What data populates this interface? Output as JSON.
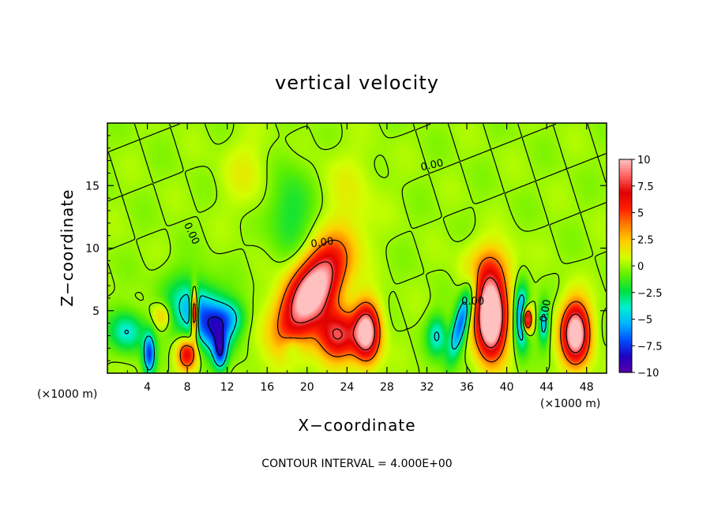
{
  "chart_data": {
    "type": "heatmap",
    "title": "vertical velocity",
    "xlabel": "X−coordinate",
    "ylabel": "Z−coordinate",
    "x_unit_left": "(×1000 m)",
    "x_unit_right": "(×1000 m)",
    "footer": "CONTOUR INTERVAL = 4.000E+00",
    "xlim": [
      0,
      50
    ],
    "ylim": [
      0,
      20
    ],
    "x_ticks": [
      "4",
      "8",
      "12",
      "16",
      "20",
      "24",
      "28",
      "32",
      "36",
      "40",
      "44",
      "48"
    ],
    "x_tick_values": [
      4,
      8,
      12,
      16,
      20,
      24,
      28,
      32,
      36,
      40,
      44,
      48
    ],
    "y_ticks": [
      "5",
      "10",
      "15"
    ],
    "y_tick_values": [
      5,
      10,
      15
    ],
    "colorbar": {
      "min": -10,
      "max": 10,
      "labels": [
        "10",
        "7.5",
        "5",
        "2.5",
        "0",
        "−2.5",
        "−5",
        "−7.5",
        "−10"
      ],
      "values": [
        10,
        7.5,
        5,
        2.5,
        0,
        -2.5,
        -5,
        -7.5,
        -10
      ],
      "colors": [
        "#5a00a8",
        "#2000c0",
        "#0050ff",
        "#00b4ff",
        "#00f0d0",
        "#00e040",
        "#60f000",
        "#d0ff00",
        "#ffd000",
        "#ff8000",
        "#ff2000",
        "#e00000",
        "#ff6060",
        "#ffc0c0"
      ]
    },
    "contour_labels": [
      {
        "text": "0.00",
        "x": 21.5,
        "z": 10.5,
        "angle": -8
      },
      {
        "text": "0.00",
        "x": 32.5,
        "z": 16.7,
        "angle": -12
      },
      {
        "text": "0.00",
        "x": 8.5,
        "z": 11.2,
        "angle": 65
      },
      {
        "text": "0.00",
        "x": 36.6,
        "z": 5.8,
        "angle": 0
      },
      {
        "text": "0.00",
        "x": 43.8,
        "z": 5.0,
        "angle": -80
      }
    ],
    "features": [
      {
        "x": 20.5,
        "z": 6.5,
        "w": 12,
        "rx": 2.6,
        "rz": 3.8,
        "tilt": 0.55
      },
      {
        "x": 23.0,
        "z": 3.0,
        "w": 8,
        "rx": 2.0,
        "rz": 2.0,
        "tilt": 0.0
      },
      {
        "x": 26.0,
        "z": 3.3,
        "w": 11,
        "rx": 1.3,
        "rz": 2.3,
        "tilt": 0.0
      },
      {
        "x": 38.4,
        "z": 4.5,
        "w": 15,
        "rx": 1.5,
        "rz": 3.1,
        "tilt": 0.0
      },
      {
        "x": 46.9,
        "z": 3.2,
        "w": 12,
        "rx": 1.4,
        "rz": 2.4,
        "tilt": 0.0
      },
      {
        "x": 8.0,
        "z": 1.5,
        "w": 7,
        "rx": 1.0,
        "rz": 1.3,
        "tilt": 0.0
      },
      {
        "x": 8.7,
        "z": 4.8,
        "w": 12,
        "rx": 0.35,
        "rz": 1.8,
        "tilt": 0.0
      },
      {
        "x": 42.0,
        "z": 4.3,
        "w": 12,
        "rx": 0.5,
        "rz": 1.0,
        "tilt": 0.0
      },
      {
        "x": 9.0,
        "z": 4.8,
        "w": -6,
        "rx": 2.6,
        "rz": 2.6,
        "tilt": -0.25
      },
      {
        "x": 11.0,
        "z": 3.5,
        "w": -4,
        "rx": 1.6,
        "rz": 2.0,
        "tilt": 0.0
      },
      {
        "x": 12.5,
        "z": 4.5,
        "w": -3,
        "rx": 1.5,
        "rz": 1.4,
        "tilt": 0.0
      },
      {
        "x": 2.0,
        "z": 3.3,
        "w": -4,
        "rx": 1.8,
        "rz": 1.6,
        "tilt": 0.0
      },
      {
        "x": 4.2,
        "z": 1.5,
        "w": -7,
        "rx": 0.6,
        "rz": 1.6,
        "tilt": 0.0
      },
      {
        "x": 11.3,
        "z": 1.6,
        "w": -6,
        "rx": 0.7,
        "rz": 1.4,
        "tilt": 0.0
      },
      {
        "x": 35.4,
        "z": 4.0,
        "w": -7,
        "rx": 0.8,
        "rz": 2.8,
        "tilt": 0.3
      },
      {
        "x": 33.0,
        "z": 3.0,
        "w": -4,
        "rx": 1.0,
        "rz": 1.6,
        "tilt": 0.0
      },
      {
        "x": 41.5,
        "z": 4.5,
        "w": -8,
        "rx": 0.7,
        "rz": 2.4,
        "tilt": 0.0
      },
      {
        "x": 43.7,
        "z": 4.0,
        "w": -5,
        "rx": 0.5,
        "rz": 1.6,
        "tilt": 0.0
      },
      {
        "x": 18.3,
        "z": 13.0,
        "w": -2.2,
        "rx": 2.3,
        "rz": 3.5,
        "tilt": 0.0
      },
      {
        "x": 18.5,
        "z": 2.0,
        "w": -2,
        "rx": 1.0,
        "rz": 1.0,
        "tilt": 0.0
      },
      {
        "x": 5.5,
        "z": 4.6,
        "w": 3,
        "rx": 0.9,
        "rz": 1.0,
        "tilt": 0.0
      },
      {
        "x": 38.3,
        "z": 8.5,
        "w": 3,
        "rx": 2.5,
        "rz": 2.0,
        "tilt": 0.0
      },
      {
        "x": 14.0,
        "z": 16.0,
        "w": 1.2,
        "rx": 2.5,
        "rz": 3.0,
        "tilt": 0.0
      },
      {
        "x": 24.0,
        "z": 15.0,
        "w": 1.0,
        "rx": 3.0,
        "rz": 3.0,
        "tilt": 0.0
      }
    ]
  }
}
